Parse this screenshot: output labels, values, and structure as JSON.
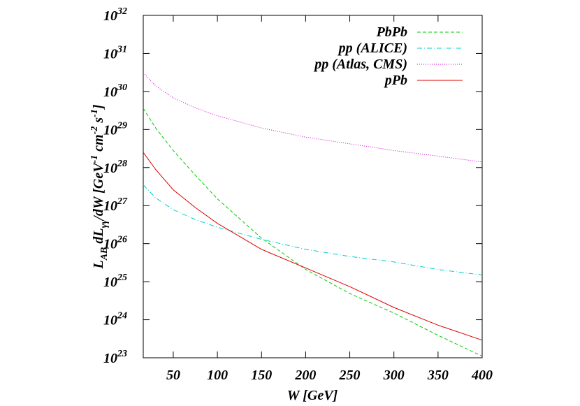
{
  "chart_data": {
    "type": "line",
    "ylabel": [
      [
        "L",
        ""
      ],
      [
        "AB",
        "sub"
      ],
      [
        " dL",
        ""
      ],
      [
        "γγ",
        "sub"
      ],
      [
        "/dW [GeV",
        ""
      ],
      [
        "-1",
        "sup"
      ],
      [
        " cm",
        ""
      ],
      [
        "-2",
        "sup"
      ],
      [
        " s",
        ""
      ],
      [
        "-1",
        "sup"
      ],
      [
        "]",
        ""
      ]
    ],
    "xlabel": "W [GeV]",
    "x": [
      16,
      30,
      50,
      75,
      100,
      150,
      200,
      250,
      300,
      350,
      400
    ],
    "series": [
      {
        "name": "PbPb",
        "color": "#00cc00",
        "dash": "5,3",
        "values": [
          3.6e+29,
          1.1e+29,
          2.8e+28,
          6.3e+27,
          1.5e+27,
          1.4e+26,
          2.1e+25,
          4.9e+24,
          1.5e+24,
          3.9e+23,
          1.1e+23
        ]
      },
      {
        "name": "pp (ALICE)",
        "color": "#00cccc",
        "dash": "7,3,1,3",
        "values": [
          3.5e+27,
          1.6e+27,
          7.8e+26,
          4.3e+26,
          2.7e+26,
          1.3e+26,
          7.1e+25,
          4.6e+25,
          3.3e+25,
          2.1e+25,
          1.5e+25
        ]
      },
      {
        "name": "pp (Atlas, CMS)",
        "color": "#cc00cc",
        "dash": "1,2",
        "values": [
          3.1e+30,
          1.4e+30,
          6.8e+29,
          3.7e+29,
          2.3e+29,
          1.1e+29,
          6.3e+28,
          4.2e+28,
          2.8e+28,
          2e+28,
          1.4e+28
        ]
      },
      {
        "name": "pPb",
        "color": "#dd0000",
        "dash": "",
        "values": [
          2.5e+28,
          8.9e+27,
          2.6e+27,
          8.9e+26,
          3.4e+26,
          7.1e+25,
          2.3e+25,
          7.4e+24,
          2.1e+24,
          7.2e+23,
          2.9e+23
        ]
      }
    ],
    "xlim": [
      16,
      400
    ],
    "xticks": [
      50,
      100,
      150,
      200,
      250,
      300,
      350,
      400
    ],
    "ylim": [
      1e+23,
      1e+32
    ],
    "ylog": true,
    "yticks": [
      {
        "value": 1e+23,
        "label": "10",
        "power": "23"
      },
      {
        "value": 1e+24,
        "label": "10",
        "power": "24"
      },
      {
        "value": 1e+25,
        "label": "10",
        "power": "25"
      },
      {
        "value": 1e+26,
        "label": "10",
        "power": "26"
      },
      {
        "value": 1e+27,
        "label": "10",
        "power": "27"
      },
      {
        "value": 1e+28,
        "label": "10",
        "power": "28"
      },
      {
        "value": 1e+29,
        "label": "10",
        "power": "29"
      },
      {
        "value": 1e+30,
        "label": "10",
        "power": "30"
      },
      {
        "value": 1e+31,
        "label": "10",
        "power": "31"
      },
      {
        "value": 1e+32,
        "label": "10",
        "power": "32"
      }
    ],
    "legend": "top-right",
    "grid": false
  }
}
